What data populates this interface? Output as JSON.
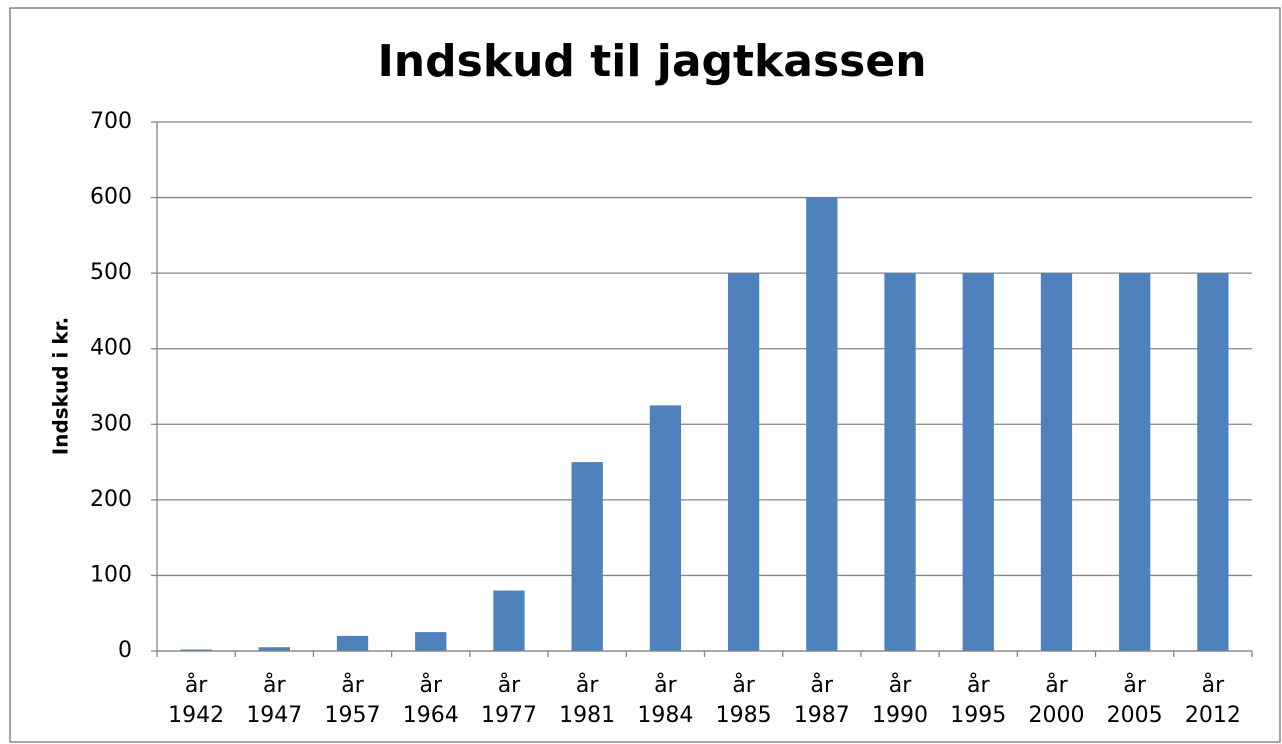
{
  "chart_data": {
    "type": "bar",
    "title": "Indskud til jagtkassen",
    "y_label": "Indskud i kr.",
    "categories": [
      "år 1942",
      "år 1947",
      "år 1957",
      "år 1964",
      "år 1977",
      "år 1981",
      "år 1984",
      "år 1985",
      "år 1987",
      "år 1990",
      "år 1995",
      "år 2000",
      "år 2005",
      "år 2012"
    ],
    "values": [
      2,
      5,
      20,
      25,
      80,
      250,
      325,
      500,
      600,
      500,
      500,
      500,
      500,
      500
    ],
    "color": "#4f81bd",
    "ylim": [
      0,
      700
    ],
    "yticks": [
      0,
      100,
      200,
      300,
      400,
      500,
      600,
      700
    ],
    "grid": true
  }
}
